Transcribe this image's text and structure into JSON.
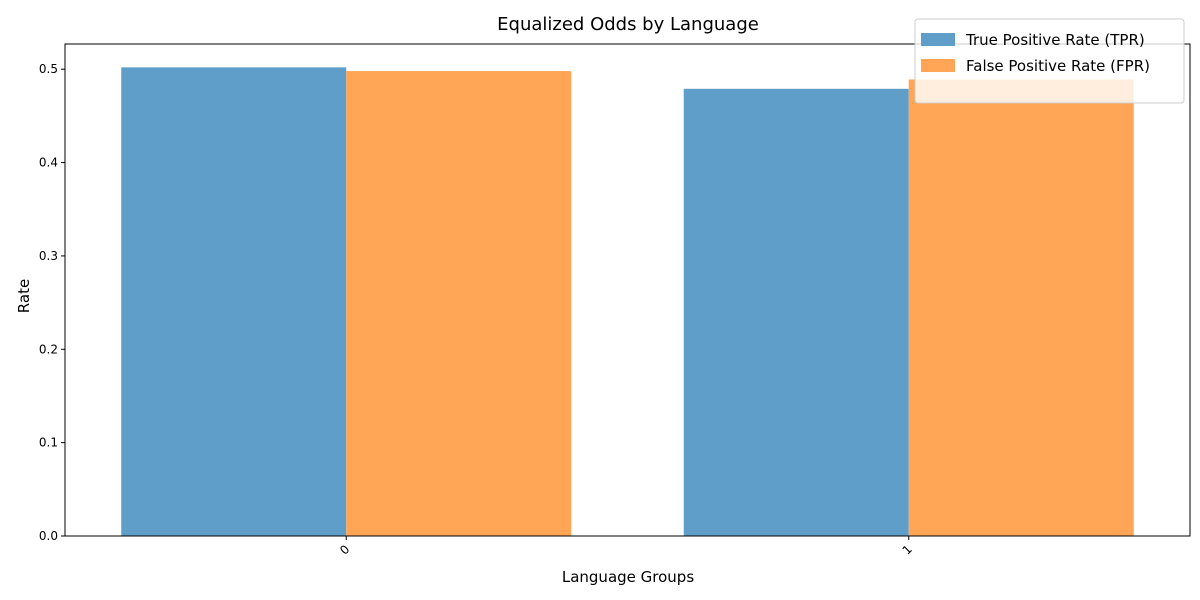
{
  "chart_data": {
    "type": "bar",
    "title": "Equalized Odds by Language",
    "xlabel": "Language Groups",
    "ylabel": "Rate",
    "categories": [
      "0",
      "1"
    ],
    "series": [
      {
        "name": "True Positive Rate (TPR)",
        "values": [
          0.502,
          0.479
        ],
        "color": "#5f9ec9"
      },
      {
        "name": "False Positive Rate (FPR)",
        "values": [
          0.498,
          0.489
        ],
        "color": "#ffa555"
      }
    ],
    "ylim": [
      0,
      0.527
    ],
    "yticks": [
      "0.0",
      "0.1",
      "0.2",
      "0.3",
      "0.4",
      "0.5"
    ],
    "grid": false,
    "legend_position": "top-right",
    "xtick_rotation": 45
  }
}
